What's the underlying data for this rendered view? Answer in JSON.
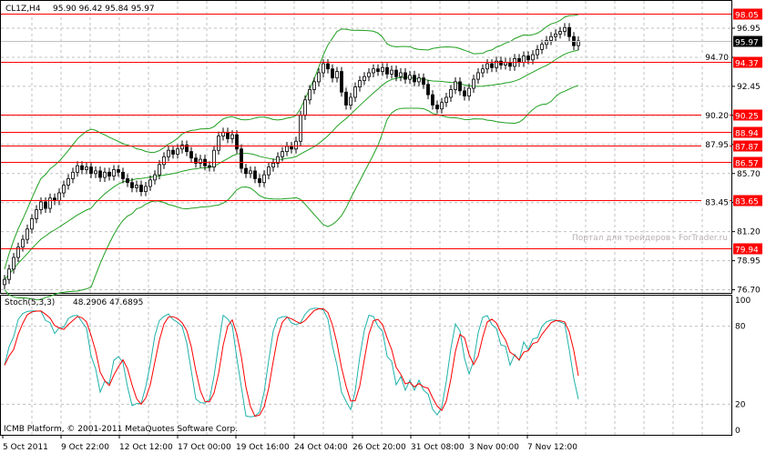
{
  "header": {
    "symbol_label": "CL1Z,H4",
    "ohlc_label": "95.90 96.42 95.84 95.97"
  },
  "watermark": "Портал для трейдеров - ForTrader.ru",
  "footer": "ICMB Platform, © 2001-2011 MetaQuotes Software Corp.",
  "colors": {
    "level_line": "#ff0000",
    "bands": "#20a020",
    "stoch_main": "#20b2aa",
    "stoch_signal": "#ff0000",
    "grid": "#c0c0c0",
    "candle": "#000000",
    "price_line": "#c0c0c0"
  },
  "chart_data": [
    {
      "type": "candlestick",
      "timeframe": "H4",
      "ylim": [
        76.7,
        98.6
      ],
      "y_ticks": [
        "96.95",
        "94.70",
        "92.45",
        "90.20",
        "87.95",
        "85.70",
        "83.45",
        "81.20",
        "78.95",
        "76.70"
      ],
      "x_ticks": [
        "5 Oct 2011",
        "9 Oct 22:00",
        "12 Oct 12:00",
        "17 Oct 00:00",
        "19 Oct 16:00",
        "24 Oct 04:00",
        "26 Oct 20:00",
        "31 Oct 08:00",
        "3 Nov 00:00",
        "7 Nov 12:00"
      ],
      "indicator": "Bollinger Bands",
      "levels": [
        "98.05",
        "94.37",
        "90.25",
        "88.94",
        "87.87",
        "86.57",
        "83.65",
        "79.94"
      ],
      "current_price": "95.97",
      "closes": [
        77.5,
        78.3,
        79.2,
        80.0,
        80.6,
        81.4,
        82.2,
        82.9,
        83.5,
        83.0,
        83.8,
        83.6,
        84.2,
        84.8,
        85.3,
        85.8,
        86.3,
        86.0,
        86.2,
        85.7,
        85.9,
        85.4,
        85.8,
        85.5,
        86.0,
        85.8,
        85.3,
        85.0,
        84.6,
        84.8,
        84.3,
        84.7,
        85.2,
        85.6,
        86.4,
        87.0,
        87.5,
        87.2,
        87.6,
        87.9,
        87.4,
        86.9,
        86.5,
        86.8,
        86.3,
        86.2,
        87.5,
        88.6,
        88.9,
        88.4,
        88.7,
        87.6,
        86.1,
        85.7,
        85.9,
        85.3,
        85.0,
        85.6,
        86.2,
        86.5,
        87.0,
        87.4,
        87.8,
        87.6,
        88.2,
        90.2,
        91.4,
        92.2,
        92.8,
        93.5,
        94.2,
        93.8,
        93.1,
        93.6,
        92.0,
        91.0,
        91.6,
        92.4,
        92.9,
        93.2,
        93.5,
        93.8,
        93.6,
        93.9,
        93.4,
        93.7,
        93.2,
        93.5,
        93.0,
        93.3,
        92.8,
        93.1,
        92.6,
        91.8,
        91.0,
        90.7,
        91.2,
        91.6,
        92.2,
        92.8,
        92.1,
        91.7,
        92.3,
        93.0,
        93.5,
        93.8,
        94.2,
        93.9,
        94.4,
        94.1,
        94.3,
        94.0,
        94.6,
        94.3,
        94.8,
        94.5,
        94.9,
        95.3,
        95.7,
        96.0,
        96.3,
        96.5,
        96.7,
        97.0,
        96.3,
        95.6,
        95.97
      ]
    },
    {
      "type": "line",
      "title": "Stoch(5,3,3)",
      "values_label": "48.2906 47.6895",
      "ylim": [
        0,
        100
      ],
      "y_ticks": [
        "100",
        "80",
        "20",
        "0"
      ]
    }
  ]
}
